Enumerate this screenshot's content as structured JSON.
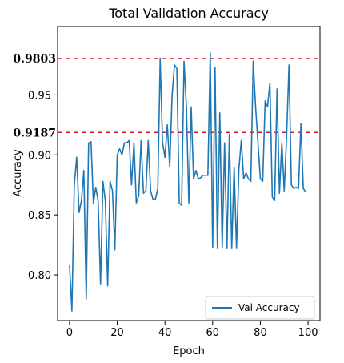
{
  "chart_data": {
    "type": "line",
    "title": "Total Validation Accuracy",
    "xlabel": "Epoch",
    "ylabel": "Accuracy",
    "xlim": [
      -5,
      105
    ],
    "ylim": [
      0.762,
      1.007
    ],
    "xticks": [
      0,
      20,
      40,
      60,
      80,
      100
    ],
    "xtick_labels": [
      "0",
      "20",
      "40",
      "60",
      "80",
      "100"
    ],
    "yticks": [
      0.8,
      0.85,
      0.9,
      0.95
    ],
    "ytick_labels": [
      "0.80",
      "0.85",
      "0.90",
      "0.95"
    ],
    "grid": false,
    "legend": {
      "position": "lower-right",
      "entries": [
        "Val Accuracy"
      ]
    },
    "series": [
      {
        "name": "Val Accuracy",
        "color": "#1f77b4",
        "x": [
          0,
          1,
          2,
          3,
          4,
          5,
          6,
          7,
          8,
          9,
          10,
          11,
          12,
          13,
          14,
          15,
          16,
          17,
          18,
          19,
          20,
          21,
          22,
          23,
          24,
          25,
          26,
          27,
          28,
          29,
          30,
          31,
          32,
          33,
          34,
          35,
          36,
          37,
          38,
          39,
          40,
          41,
          42,
          43,
          44,
          45,
          46,
          47,
          48,
          49,
          50,
          51,
          52,
          53,
          54,
          55,
          56,
          57,
          58,
          59,
          60,
          61,
          62,
          63,
          64,
          65,
          66,
          67,
          68,
          69,
          70,
          71,
          72,
          73,
          74,
          75,
          76,
          77,
          78,
          79,
          80,
          81,
          82,
          83,
          84,
          85,
          86,
          87,
          88,
          89,
          90,
          91,
          92,
          93,
          94,
          95,
          96,
          97,
          98,
          99
        ],
        "values": [
          0.808,
          0.77,
          0.875,
          0.898,
          0.852,
          0.862,
          0.887,
          0.78,
          0.91,
          0.911,
          0.86,
          0.873,
          0.862,
          0.792,
          0.878,
          0.862,
          0.791,
          0.878,
          0.87,
          0.821,
          0.9,
          0.905,
          0.9,
          0.91,
          0.91,
          0.912,
          0.875,
          0.91,
          0.86,
          0.866,
          0.912,
          0.868,
          0.87,
          0.912,
          0.87,
          0.863,
          0.863,
          0.872,
          0.98,
          0.91,
          0.898,
          0.925,
          0.89,
          0.95,
          0.975,
          0.972,
          0.86,
          0.858,
          0.978,
          0.94,
          0.86,
          0.94,
          0.88,
          0.887,
          0.88,
          0.881,
          0.883,
          0.883,
          0.883,
          0.985,
          0.823,
          0.973,
          0.822,
          0.935,
          0.823,
          0.91,
          0.822,
          0.917,
          0.822,
          0.89,
          0.822,
          0.888,
          0.912,
          0.88,
          0.885,
          0.88,
          0.878,
          0.978,
          0.94,
          0.91,
          0.88,
          0.878,
          0.945,
          0.94,
          0.96,
          0.865,
          0.862,
          0.955,
          0.868,
          0.91,
          0.87,
          0.915,
          0.975,
          0.875,
          0.872,
          0.873,
          0.872,
          0.926,
          0.872,
          0.869
        ]
      }
    ],
    "reference_lines": [
      {
        "value": 0.9803,
        "label": "0.9803",
        "color": "#e31a1c",
        "style": "dashed"
      },
      {
        "value": 0.9187,
        "label": "0.9187",
        "color": "#e31a1c",
        "style": "dashed"
      }
    ]
  }
}
